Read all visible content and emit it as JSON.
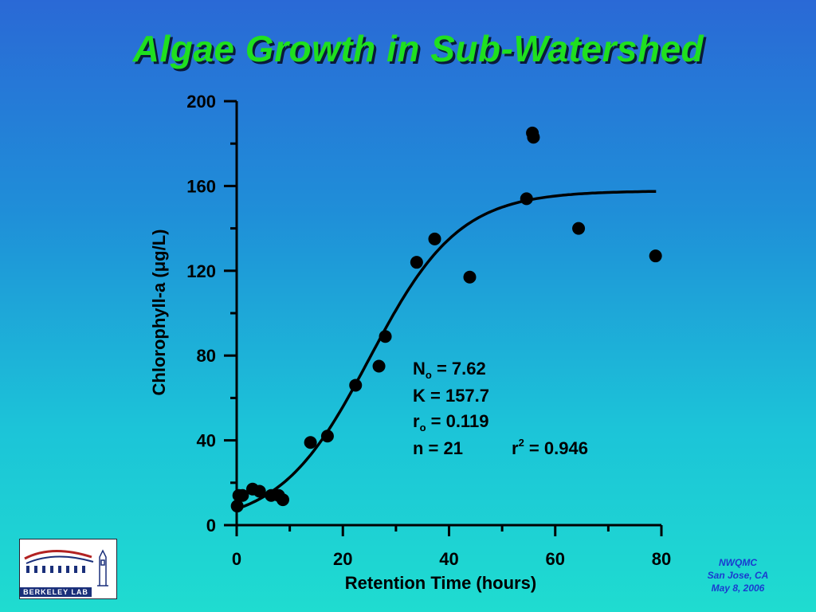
{
  "slide_title": "Algae Growth in Sub-Watershed",
  "chart_data": {
    "type": "scatter",
    "title": "Algae Growth in Sub-Watershed",
    "xlabel": "Retention Time (hours)",
    "ylabel": "Chlorophyll-a (μg/L)",
    "xlim": [
      0,
      80
    ],
    "ylim": [
      0,
      200
    ],
    "x_ticks": [
      0,
      20,
      40,
      60,
      80
    ],
    "y_ticks": [
      0,
      40,
      80,
      120,
      160,
      200
    ],
    "grid": false,
    "series": [
      {
        "type": "scatter",
        "color": "#000000",
        "x": [
          0.1,
          0.4,
          1.1,
          3.0,
          4.3,
          6.5,
          7.9,
          8.7,
          13.9,
          17.1,
          22.4,
          26.8,
          28.0,
          33.9,
          37.3,
          43.9,
          54.6,
          55.7,
          55.9,
          64.4,
          78.9
        ],
        "y": [
          9,
          14,
          14,
          17,
          16,
          14,
          14,
          12,
          39,
          42,
          66,
          75,
          89,
          124,
          135,
          117,
          154,
          185,
          183,
          140,
          127
        ]
      },
      {
        "type": "line",
        "model": "logistic",
        "color": "#000000",
        "params": {
          "N0": 7.62,
          "K": 157.7,
          "r0": 0.119
        },
        "x_range": [
          0,
          79
        ]
      }
    ],
    "annotation": {
      "n0_main": "N",
      "n0_sub": "o",
      "n0_rest": " = 7.62",
      "k": "K = 157.7",
      "r0_main": "r",
      "r0_sub": "o",
      "r0_rest": " = 0.119",
      "n": "n = 21",
      "r2_main": "r",
      "r2_sup": "2",
      "r2_rest": " = 0.946"
    }
  },
  "logo": {
    "text": "BERKELEY LAB"
  },
  "footer": {
    "line1": "NWQMC",
    "line2": "San Jose, CA",
    "line3": "May 8, 2006"
  },
  "colors": {
    "title": "#1fe01f",
    "footer": "#1a3bd0",
    "logo_blue": "#1a2f7a",
    "logo_red": "#b22222"
  }
}
